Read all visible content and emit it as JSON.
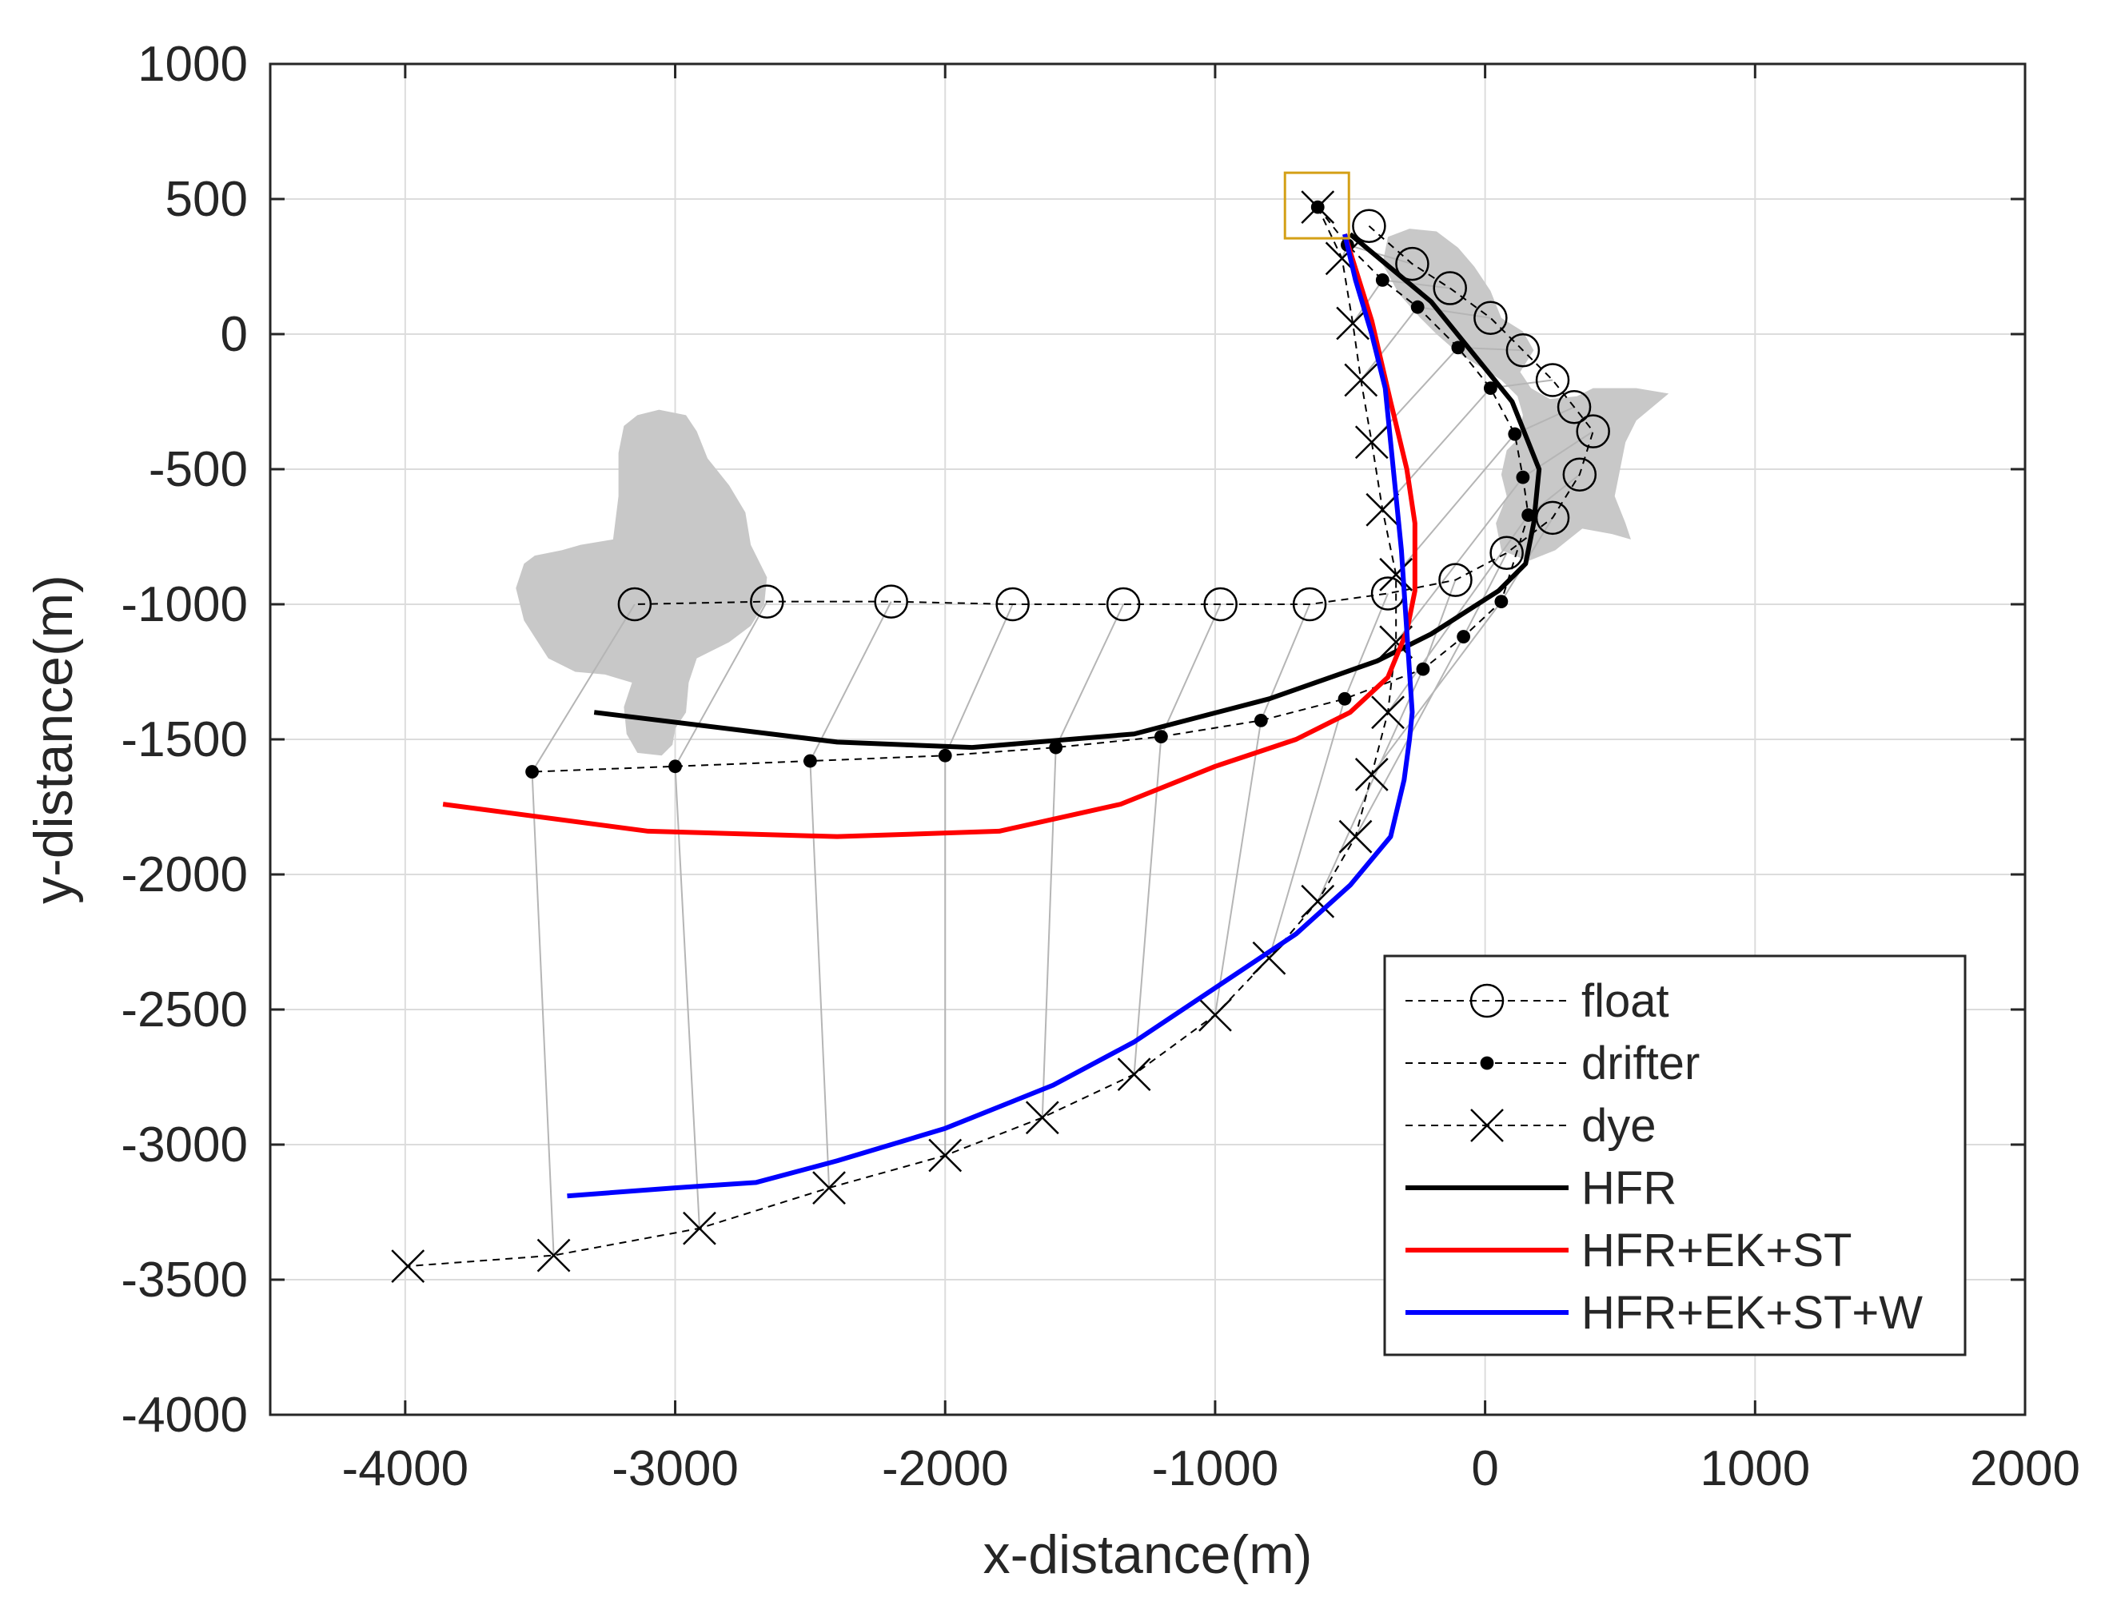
{
  "chart_data": {
    "type": "line",
    "xlabel": "x-distance(m)",
    "ylabel": "y-distance(m)",
    "xlim": [
      -4500,
      2000
    ],
    "ylim": [
      -4000,
      1000
    ],
    "xticks": [
      -4000,
      -3000,
      -2000,
      -1000,
      0,
      1000,
      2000
    ],
    "yticks": [
      1000,
      500,
      0,
      -500,
      -1000,
      -1500,
      -2000,
      -2500,
      -3000,
      -3500,
      -4000
    ],
    "xtick_labels": [
      "-4000",
      "-3000",
      "-2000",
      "-1000",
      "0",
      "1000",
      "2000"
    ],
    "ytick_labels": [
      "1000",
      "500",
      "0",
      "-500",
      "-1000",
      "-1500",
      "-2000",
      "-2500",
      "-3000",
      "-3500",
      "-4000"
    ],
    "grid": true,
    "legend_position": "bottom-right",
    "release_point": [
      -620,
      470
    ],
    "shaded_regions": [
      [
        [
          -280,
          390
        ],
        [
          -180,
          380
        ],
        [
          -100,
          320
        ],
        [
          -40,
          250
        ],
        [
          20,
          160
        ],
        [
          60,
          60
        ],
        [
          140,
          10
        ],
        [
          180,
          -60
        ],
        [
          130,
          -140
        ],
        [
          170,
          -200
        ],
        [
          240,
          -240
        ],
        [
          340,
          -230
        ],
        [
          400,
          -200
        ],
        [
          560,
          -200
        ],
        [
          680,
          -220
        ],
        [
          560,
          -320
        ],
        [
          520,
          -400
        ],
        [
          500,
          -500
        ],
        [
          480,
          -600
        ],
        [
          520,
          -700
        ],
        [
          540,
          -760
        ],
        [
          470,
          -740
        ],
        [
          360,
          -720
        ],
        [
          260,
          -800
        ],
        [
          160,
          -840
        ],
        [
          60,
          -800
        ],
        [
          40,
          -700
        ],
        [
          80,
          -600
        ],
        [
          60,
          -520
        ],
        [
          80,
          -430
        ],
        [
          120,
          -390
        ],
        [
          140,
          -300
        ],
        [
          120,
          -230
        ],
        [
          60,
          -170
        ],
        [
          -20,
          -120
        ],
        [
          -100,
          -70
        ],
        [
          -180,
          0
        ],
        [
          -240,
          60
        ],
        [
          -320,
          150
        ],
        [
          -380,
          260
        ],
        [
          -360,
          360
        ]
      ],
      [
        [
          -3140,
          -300
        ],
        [
          -3060,
          -280
        ],
        [
          -2960,
          -300
        ],
        [
          -2920,
          -360
        ],
        [
          -2880,
          -460
        ],
        [
          -2800,
          -560
        ],
        [
          -2740,
          -660
        ],
        [
          -2720,
          -780
        ],
        [
          -2660,
          -900
        ],
        [
          -2670,
          -1000
        ],
        [
          -2720,
          -1080
        ],
        [
          -2800,
          -1140
        ],
        [
          -2920,
          -1200
        ],
        [
          -2950,
          -1290
        ],
        [
          -2960,
          -1400
        ],
        [
          -3000,
          -1460
        ],
        [
          -3010,
          -1520
        ],
        [
          -3050,
          -1560
        ],
        [
          -3140,
          -1550
        ],
        [
          -3180,
          -1480
        ],
        [
          -3190,
          -1380
        ],
        [
          -3160,
          -1290
        ],
        [
          -3260,
          -1260
        ],
        [
          -3370,
          -1250
        ],
        [
          -3470,
          -1200
        ],
        [
          -3560,
          -1060
        ],
        [
          -3590,
          -940
        ],
        [
          -3560,
          -850
        ],
        [
          -3520,
          -820
        ],
        [
          -3420,
          -800
        ],
        [
          -3350,
          -780
        ],
        [
          -3230,
          -760
        ],
        [
          -3210,
          -600
        ],
        [
          -3210,
          -440
        ],
        [
          -3190,
          -340
        ]
      ]
    ],
    "series": [
      {
        "name": "float",
        "color": "#000000",
        "line_style": "dashed",
        "marker": "circle",
        "x": [
          -430,
          -270,
          -130,
          20,
          140,
          250,
          330,
          400,
          350,
          250,
          80,
          -110,
          -360,
          -650,
          -980,
          -1340,
          -1750,
          -2200,
          -2660,
          -3150
        ],
        "y": [
          400,
          260,
          170,
          60,
          -60,
          -170,
          -270,
          -360,
          -520,
          -680,
          -810,
          -910,
          -960,
          -1000,
          -1000,
          -1000,
          -1000,
          -990,
          -990,
          -1000
        ]
      },
      {
        "name": "drifter",
        "color": "#000000",
        "line_style": "dashed",
        "marker": "dot",
        "x": [
          -620,
          -510,
          -380,
          -250,
          -100,
          20,
          110,
          140,
          160,
          60,
          -80,
          -230,
          -520,
          -830,
          -1200,
          -1590,
          -2000,
          -2500,
          -3000,
          -3530
        ],
        "y": [
          470,
          330,
          200,
          100,
          -50,
          -200,
          -370,
          -530,
          -670,
          -990,
          -1120,
          -1240,
          -1350,
          -1430,
          -1490,
          -1530,
          -1560,
          -1580,
          -1600,
          -1620
        ]
      },
      {
        "name": "dye",
        "color": "#000000",
        "line_style": "dashed",
        "marker": "x",
        "x": [
          -620,
          -530,
          -490,
          -460,
          -420,
          -380,
          -330,
          -330,
          -360,
          -420,
          -480,
          -620,
          -800,
          -1000,
          -1300,
          -1640,
          -2000,
          -2430,
          -2910,
          -3450,
          -3990
        ],
        "y": [
          470,
          280,
          40,
          -170,
          -400,
          -650,
          -890,
          -1140,
          -1400,
          -1630,
          -1860,
          -2100,
          -2310,
          -2520,
          -2740,
          -2900,
          -3040,
          -3160,
          -3310,
          -3410,
          -3450
        ]
      },
      {
        "name": "HFR",
        "color": "#000000",
        "line_style": "solid",
        "marker": "none",
        "x": [
          -500,
          -200,
          100,
          200,
          180,
          150,
          50,
          -200,
          -400,
          -800,
          -1300,
          -1900,
          -2400,
          -3300
        ],
        "y": [
          370,
          120,
          -250,
          -500,
          -700,
          -850,
          -950,
          -1110,
          -1210,
          -1350,
          -1480,
          -1530,
          -1510,
          -1400
        ]
      },
      {
        "name": "HFR+EK+ST",
        "color": "#ff0000",
        "line_style": "solid",
        "marker": "none",
        "x": [
          -520,
          -420,
          -350,
          -290,
          -260,
          -260,
          -290,
          -360,
          -500,
          -700,
          -1000,
          -1350,
          -1800,
          -2400,
          -3100,
          -3860
        ],
        "y": [
          370,
          50,
          -250,
          -500,
          -700,
          -950,
          -1100,
          -1270,
          -1400,
          -1500,
          -1600,
          -1740,
          -1840,
          -1860,
          -1840,
          -1740
        ]
      },
      {
        "name": "HFR+EK+ST+W",
        "color": "#0000ff",
        "line_style": "solid",
        "marker": "none",
        "x": [
          -520,
          -480,
          -420,
          -370,
          -340,
          -310,
          -290,
          -270,
          -280,
          -300,
          -350,
          -500,
          -700,
          -1000,
          -1300,
          -1600,
          -2000,
          -2400,
          -2700,
          -3000,
          -3400
        ],
        "y": [
          370,
          200,
          0,
          -200,
          -500,
          -800,
          -1100,
          -1400,
          -1500,
          -1650,
          -1860,
          -2040,
          -2220,
          -2420,
          -2620,
          -2780,
          -2940,
          -3060,
          -3140,
          -3160,
          -3190
        ]
      }
    ]
  }
}
